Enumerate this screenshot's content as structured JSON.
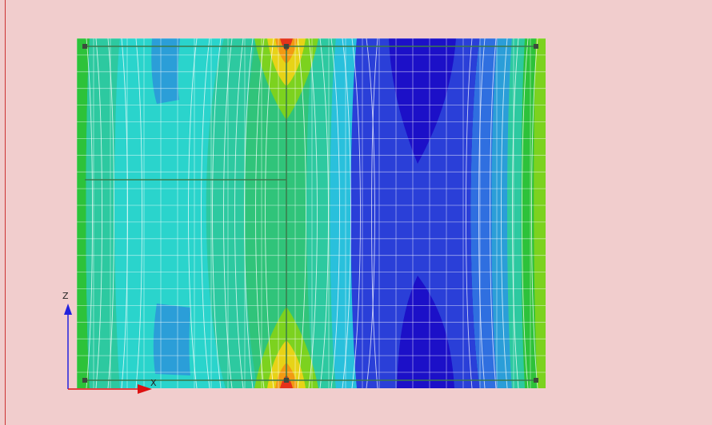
{
  "viewport": {
    "background": "#f1cdcd",
    "axes": {
      "vertical_label": "Z",
      "horizontal_label": "X",
      "vertical_color": "#2222dd",
      "horizontal_color": "#dd1111"
    }
  },
  "contour_plot": {
    "band_colors": {
      "deep_blue": "#1c10c8",
      "blue": "#2a3fd8",
      "mid_blue": "#2f6fe0",
      "sky_blue": "#2b9ed8",
      "light_blue": "#29c0dc",
      "cyan": "#2ad4cc",
      "teal": "#2dc9a0",
      "sea_green": "#30c47a",
      "green": "#2dc23a",
      "yellow_green": "#7cd21f",
      "yellow": "#e7d317",
      "orange": "#f29a12",
      "red": "#e5331b"
    },
    "mesh_line_color": "#ffffff",
    "node_color": "#3d4a3d",
    "edge_color": "#3a7a4a"
  }
}
